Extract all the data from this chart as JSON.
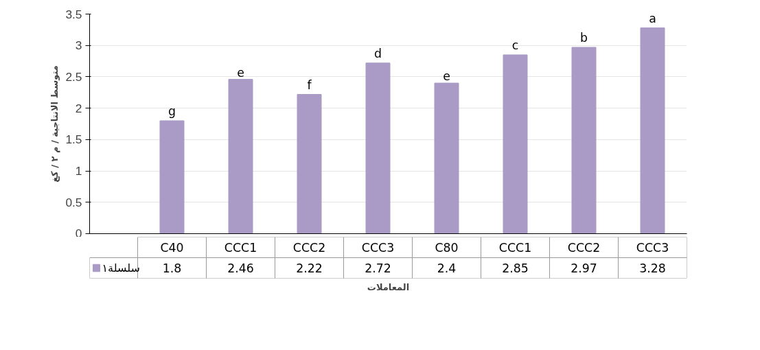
{
  "chart_data": {
    "type": "bar",
    "ylabel": "متوسط الانتاجية / م ٢ / كغ",
    "xlabel": "المعاملات",
    "categories": [
      "C40",
      "CCC1",
      "CCC2",
      "CCC3",
      "C80",
      "CCC1",
      "CCC2",
      "CCC3"
    ],
    "series": [
      {
        "name": "سلسلة١",
        "color": "#a99bc6",
        "values": [
          1.8,
          2.46,
          2.22,
          2.72,
          2.4,
          2.85,
          2.97,
          3.28
        ]
      }
    ],
    "ylim": [
      0,
      3.5
    ],
    "yticks": [
      0,
      0.5,
      1,
      1.5,
      2,
      2.5,
      3,
      3.5
    ],
    "grid": "y",
    "legend": "bottom",
    "data_labels": true,
    "annotations": [
      "g",
      "e",
      "f",
      "d",
      "e",
      "c",
      "b",
      "a"
    ]
  }
}
